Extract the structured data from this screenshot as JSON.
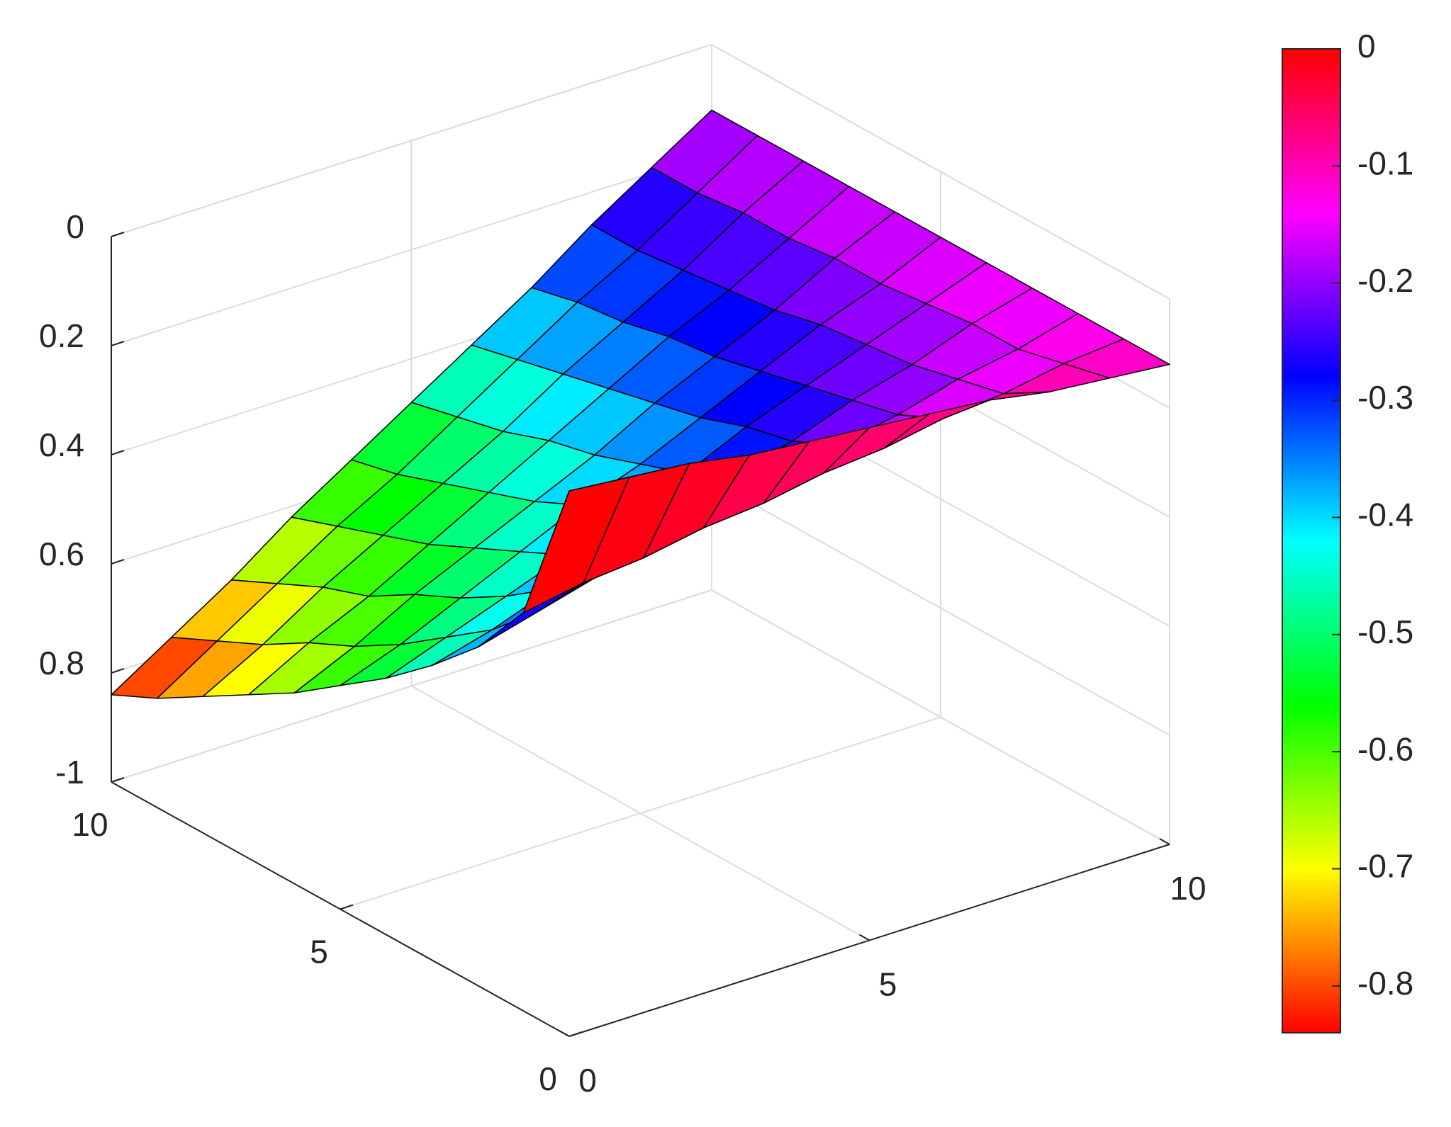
{
  "chart_data": {
    "type": "surface",
    "x": [
      0,
      1,
      2,
      3,
      4,
      5,
      6,
      7,
      8,
      9,
      10
    ],
    "y": [
      0,
      1,
      2,
      3,
      4,
      5,
      6,
      7,
      8,
      9,
      10
    ],
    "z": [
      [
        0,
        -0.01,
        -0.02,
        -0.04,
        -0.05,
        -0.06,
        -0.07,
        -0.08,
        -0.1,
        -0.11,
        -0.12
      ],
      [
        -0.27,
        -0.25,
        -0.24,
        -0.22,
        -0.21,
        -0.19,
        -0.18,
        -0.16,
        -0.15,
        -0.13,
        -0.12
      ],
      [
        -0.38,
        -0.35,
        -0.32,
        -0.3,
        -0.27,
        -0.25,
        -0.22,
        -0.2,
        -0.17,
        -0.15,
        -0.12
      ],
      [
        -0.46,
        -0.43,
        -0.39,
        -0.36,
        -0.32,
        -0.29,
        -0.26,
        -0.22,
        -0.19,
        -0.15,
        -0.12
      ],
      [
        -0.53,
        -0.49,
        -0.45,
        -0.41,
        -0.37,
        -0.33,
        -0.28,
        -0.24,
        -0.2,
        -0.16,
        -0.12
      ],
      [
        -0.59,
        -0.55,
        -0.5,
        -0.45,
        -0.4,
        -0.36,
        -0.31,
        -0.26,
        -0.21,
        -0.17,
        -0.12
      ],
      [
        -0.65,
        -0.6,
        -0.54,
        -0.49,
        -0.44,
        -0.39,
        -0.33,
        -0.28,
        -0.23,
        -0.17,
        -0.12
      ],
      [
        -0.7,
        -0.64,
        -0.59,
        -0.53,
        -0.47,
        -0.41,
        -0.35,
        -0.29,
        -0.24,
        -0.18,
        -0.12
      ],
      [
        -0.75,
        -0.69,
        -0.62,
        -0.56,
        -0.5,
        -0.44,
        -0.37,
        -0.31,
        -0.25,
        -0.18,
        -0.12
      ],
      [
        -0.8,
        -0.73,
        -0.66,
        -0.59,
        -0.53,
        -0.46,
        -0.39,
        -0.32,
        -0.26,
        -0.19,
        -0.12
      ],
      [
        -0.84,
        -0.77,
        -0.7,
        -0.62,
        -0.55,
        -0.48,
        -0.41,
        -0.34,
        -0.26,
        -0.19,
        -0.12
      ]
    ],
    "xlim": [
      0,
      10
    ],
    "ylim": [
      0,
      10
    ],
    "zlim": [
      -1,
      0
    ],
    "xticks": [
      0,
      5,
      10
    ],
    "yticks": [
      0,
      5,
      10
    ],
    "zticks": [
      -1,
      {
        "value": -0.8,
        "label": "0.8"
      },
      {
        "value": -0.6,
        "label": "0.6"
      },
      {
        "value": -0.4,
        "label": "0.4"
      },
      {
        "value": -0.2,
        "label": "0.2"
      },
      0
    ],
    "grid": true,
    "edge_color": "#000000",
    "colormap": "hsv",
    "colorbar": {
      "clim": [
        -0.84,
        0
      ],
      "ticks": [
        -0.8,
        -0.7,
        -0.6,
        -0.5,
        -0.4,
        -0.3,
        -0.2,
        -0.1,
        0
      ]
    }
  }
}
